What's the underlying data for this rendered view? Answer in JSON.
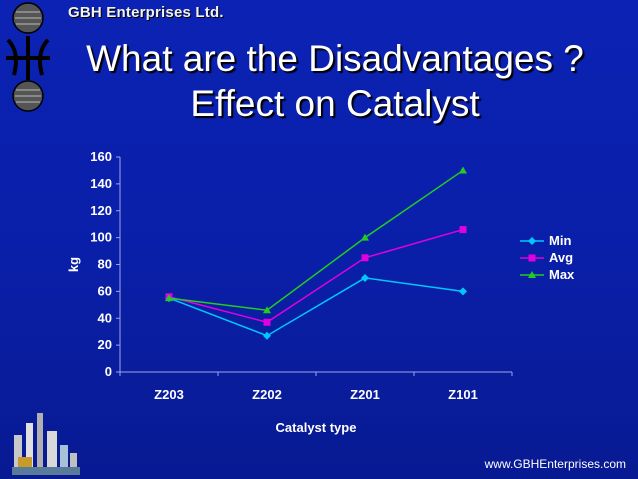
{
  "company": "GBH Enterprises Ltd.",
  "title_line1": "What are the Disadvantages ?",
  "title_line2": "Effect on Catalyst",
  "website": "www.GBHEnterprises.com",
  "colors": {
    "min": "#00c8ff",
    "avg": "#e000e0",
    "max": "#22cc22",
    "background": "#0b22b4"
  },
  "chart_data": {
    "type": "line",
    "title": "",
    "xlabel": "Catalyst type",
    "ylabel": "kg",
    "categories": [
      "Z203",
      "Z202",
      "Z201",
      "Z101"
    ],
    "ylim": [
      0,
      160
    ],
    "yticks": [
      0,
      20,
      40,
      60,
      80,
      100,
      120,
      140,
      160
    ],
    "legend_position": "right",
    "series": [
      {
        "name": "Min",
        "marker": "diamond",
        "color": "#00c8ff",
        "values": [
          55,
          27,
          70,
          60
        ]
      },
      {
        "name": "Avg",
        "marker": "square",
        "color": "#e000e0",
        "values": [
          56,
          37,
          85,
          106
        ]
      },
      {
        "name": "Max",
        "marker": "triangle",
        "color": "#22cc22",
        "values": [
          55,
          46,
          100,
          150
        ]
      }
    ]
  }
}
